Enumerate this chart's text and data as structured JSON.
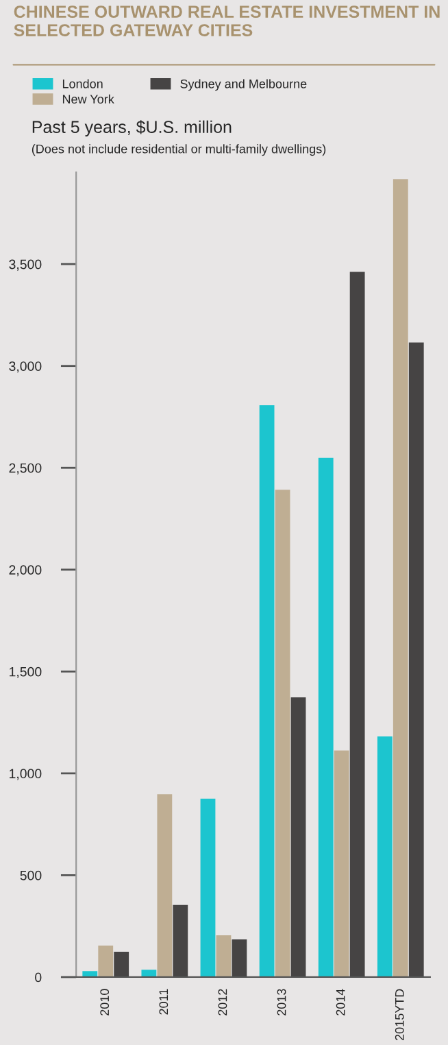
{
  "chart_data": {
    "type": "bar",
    "title": "CHINESE OUTWARD REAL ESTATE INVESTMENT IN SELECTED GATEWAY CITIES",
    "subtitle": "Past 5 years, $U.S. million",
    "annotations": [
      "(Does not include residential or multi-family dwellings)"
    ],
    "categories": [
      "2010",
      "2011",
      "2012",
      "2013",
      "2014",
      "2015YTD"
    ],
    "series": [
      {
        "name": "London",
        "color": "#1cc5cf",
        "values": [
          29,
          36,
          876,
          2807,
          2549,
          1181
        ]
      },
      {
        "name": "New York",
        "color": "#bfae93",
        "values": [
          155,
          898,
          205,
          2392,
          1112,
          3917
        ]
      },
      {
        "name": "Sydney and Melbourne",
        "color": "#464444",
        "values": [
          124,
          354,
          185,
          1373,
          3462,
          3115
        ]
      }
    ],
    "ylim": [
      0,
      3950
    ],
    "yticks": [
      0,
      500,
      {
        "value": 1000,
        "label": "1,000"
      },
      {
        "value": 1500,
        "label": "1,500"
      },
      {
        "value": 2000,
        "label": "2,000"
      },
      {
        "value": 2500,
        "label": "2,500"
      },
      {
        "value": 3000,
        "label": "3,000"
      },
      {
        "value": 3500,
        "label": "3,500"
      }
    ],
    "legend": "top left",
    "grid": false
  }
}
